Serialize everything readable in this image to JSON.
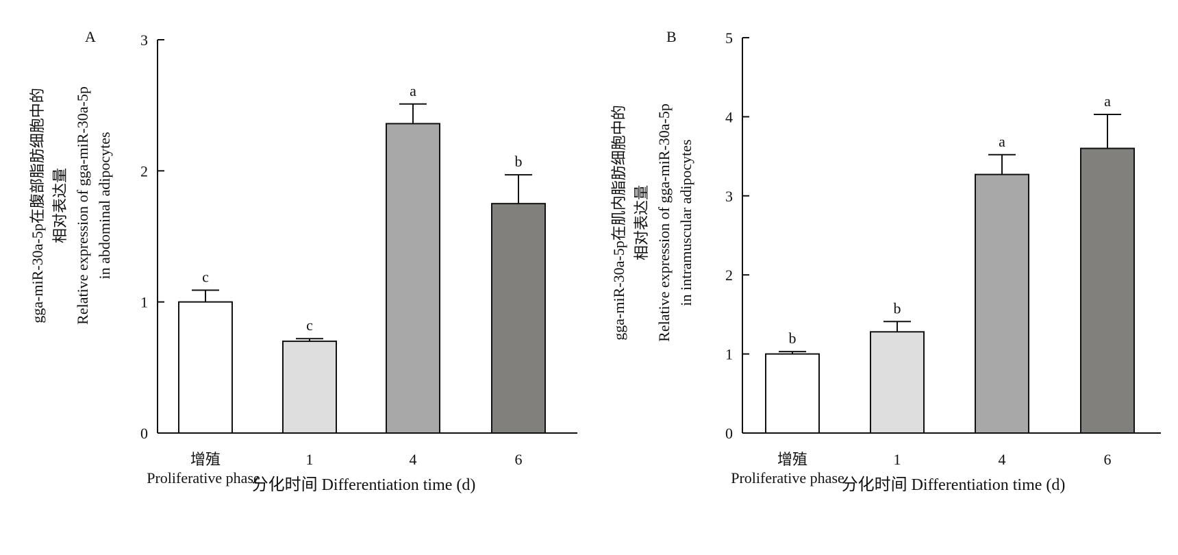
{
  "chart_data": [
    {
      "type": "bar",
      "panel_label": "A",
      "categories": [
        "增殖",
        "1",
        "4",
        "6"
      ],
      "category_sublabel": "Proliferative phase",
      "values": [
        1.0,
        0.7,
        2.36,
        1.75
      ],
      "errors": [
        0.09,
        0.02,
        0.15,
        0.22
      ],
      "significance": [
        "c",
        "c",
        "a",
        "b"
      ],
      "bar_colors": [
        "#ffffff",
        "#dedede",
        "#a9a8a9",
        "#82807d"
      ],
      "ylim": [
        0,
        3
      ],
      "yticks": [
        0,
        1,
        2,
        3
      ],
      "ylabel_zh_line1": "gga-miR-30a-5p在腹部脂肪细胞中的",
      "ylabel_zh_line2": "相对表达量",
      "ylabel_en_line1": "Relative expression of gga-miR-30a-5p",
      "ylabel_en_line2": "in abdominal adipocytes",
      "xlabel": "分化时间 Differentiation time (d)"
    },
    {
      "type": "bar",
      "panel_label": "B",
      "categories": [
        "增殖",
        "1",
        "4",
        "6"
      ],
      "category_sublabel": "Proliferative phase",
      "values": [
        1.0,
        1.28,
        3.27,
        3.6
      ],
      "errors": [
        0.03,
        0.13,
        0.25,
        0.43
      ],
      "significance": [
        "b",
        "b",
        "a",
        "a"
      ],
      "bar_colors": [
        "#ffffff",
        "#dedede",
        "#a9a8a9",
        "#82807d"
      ],
      "ylim": [
        0,
        5
      ],
      "yticks": [
        0,
        1,
        2,
        3,
        4,
        5
      ],
      "ylabel_zh_line1": "gga-miR-30a-5p在肌内脂肪细胞中的",
      "ylabel_zh_line2": "相对表达量",
      "ylabel_en_line1": "Relative expression of gga-miR-30a-5p",
      "ylabel_en_line2": "in intramuscular adipocytes",
      "xlabel": "分化时间 Differentiation time (d)"
    }
  ]
}
